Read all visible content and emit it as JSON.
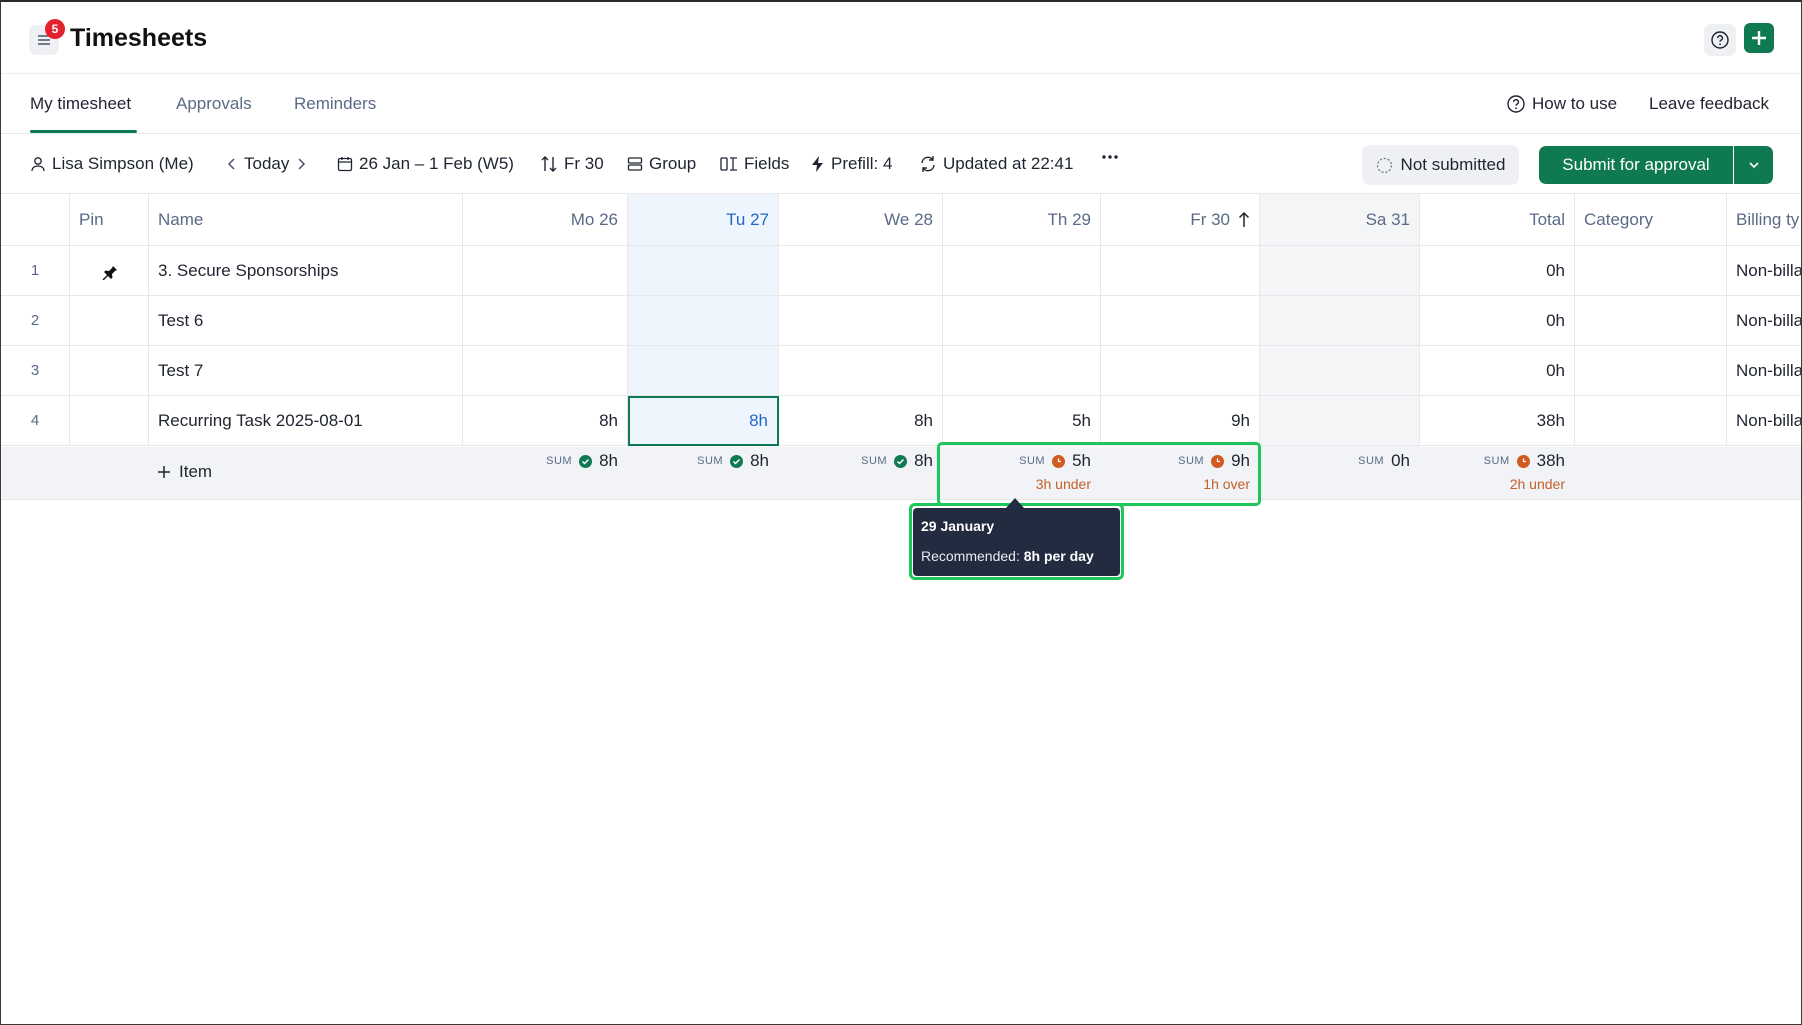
{
  "header": {
    "title": "Timesheets",
    "notification_count": "5"
  },
  "tabs": [
    {
      "label": "My timesheet",
      "active": true
    },
    {
      "label": "Approvals",
      "active": false
    },
    {
      "label": "Reminders",
      "active": false
    }
  ],
  "links": {
    "how_to_use": "How to use",
    "leave_feedback": "Leave feedback"
  },
  "toolbar": {
    "user": "Lisa Simpson (Me)",
    "today": "Today",
    "date_range": "26 Jan – 1 Feb (W5)",
    "sort": "Fr 30",
    "group": "Group",
    "fields": "Fields",
    "prefill": "Prefill: 4",
    "updated": "Updated at 22:41",
    "status": "Not submitted",
    "submit": "Submit for approval"
  },
  "table": {
    "columns": [
      "",
      "Pin",
      "Name",
      "Mo 26",
      "Tu 27",
      "We 28",
      "Th 29",
      "Fr 30",
      "Sa 31",
      "Total",
      "Category",
      "Billing ty"
    ],
    "rows": [
      {
        "num": "1",
        "pinned": true,
        "name": "3. Secure Sponsorships",
        "mo": "",
        "tu": "",
        "we": "",
        "th": "",
        "fr": "",
        "sa": "",
        "total": "0h",
        "category": "",
        "billing": "Non-billa"
      },
      {
        "num": "2",
        "pinned": false,
        "name": "Test 6",
        "mo": "",
        "tu": "",
        "we": "",
        "th": "",
        "fr": "",
        "sa": "",
        "total": "0h",
        "category": "",
        "billing": "Non-billa"
      },
      {
        "num": "3",
        "pinned": false,
        "name": "Test 7",
        "mo": "",
        "tu": "",
        "we": "",
        "th": "",
        "fr": "",
        "sa": "",
        "total": "0h",
        "category": "",
        "billing": "Non-billa"
      },
      {
        "num": "4",
        "pinned": false,
        "name": "Recurring Task 2025-08-01",
        "mo": "8h",
        "tu": "8h",
        "we": "8h",
        "th": "5h",
        "fr": "9h",
        "sa": "",
        "total": "38h",
        "category": "",
        "billing": "Non-billa"
      }
    ],
    "add_item": "Item",
    "sum_label": "SUM",
    "sums": {
      "mo": {
        "value": "8h"
      },
      "tu": {
        "value": "8h"
      },
      "we": {
        "value": "8h"
      },
      "th": {
        "value": "5h",
        "note": "3h under"
      },
      "fr": {
        "value": "9h",
        "note": "1h over"
      },
      "sa": {
        "value": "0h"
      },
      "total": {
        "value": "38h",
        "note": "2h under"
      }
    }
  },
  "tooltip": {
    "title": "29 January",
    "text_prefix": "Recommended:",
    "text_bold": "8h per day"
  },
  "colors": {
    "accent": "#0f7a52",
    "warning": "#d05a1f",
    "highlight": "#1fc75a",
    "today_column": "#eef5fd"
  }
}
